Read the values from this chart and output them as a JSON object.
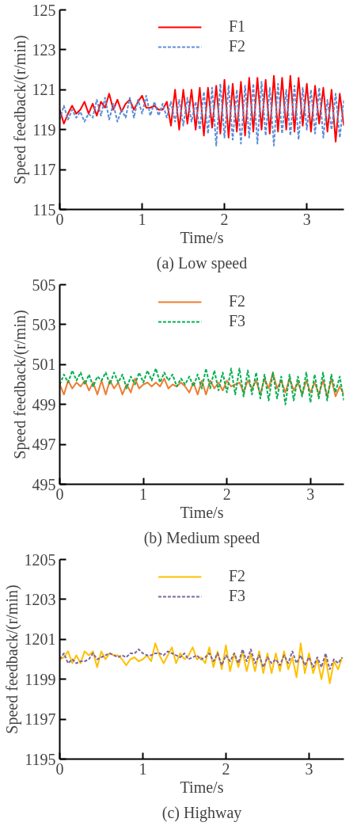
{
  "chart_data": [
    {
      "type": "line",
      "title": "(a) Low speed",
      "xlabel": "Time/s",
      "ylabel": "Speed feedback/(r/min)",
      "xlim": [
        0,
        3.45
      ],
      "ylim": [
        115,
        125
      ],
      "xticks": [
        0,
        1,
        2,
        3
      ],
      "yticks": [
        115,
        117,
        119,
        121,
        123,
        125
      ],
      "grid": false,
      "legend": "top",
      "marker": "none",
      "x": [
        0,
        0.05,
        0.1,
        0.15,
        0.2,
        0.25,
        0.3,
        0.35,
        0.4,
        0.45,
        0.5,
        0.55,
        0.6,
        0.65,
        0.7,
        0.75,
        0.8,
        0.85,
        0.9,
        0.95,
        1,
        1.05,
        1.1,
        1.15,
        1.2,
        1.25,
        1.3,
        1.35,
        1.4,
        1.45,
        1.5,
        1.55,
        1.6,
        1.65,
        1.7,
        1.75,
        1.8,
        1.85,
        1.9,
        1.95,
        2,
        2.05,
        2.1,
        2.15,
        2.2,
        2.25,
        2.3,
        2.35,
        2.4,
        2.45,
        2.5,
        2.55,
        2.6,
        2.65,
        2.7,
        2.75,
        2.8,
        2.85,
        2.9,
        2.95,
        3,
        3.05,
        3.1,
        3.15,
        3.2,
        3.25,
        3.3,
        3.35,
        3.4,
        3.45
      ],
      "series": [
        {
          "name": "F1",
          "color": "#ff0000",
          "line_style": "solid",
          "values": [
            120.0,
            119.3,
            119.8,
            120.2,
            119.8,
            120.0,
            120.4,
            119.8,
            120.3,
            119.7,
            120.4,
            120.1,
            120.8,
            120.0,
            120.5,
            119.9,
            120.3,
            120.5,
            120.0,
            120.4,
            120.7,
            120.1,
            120.1,
            120.2,
            120.0,
            120.0,
            120.4,
            119.2,
            121.0,
            119.0,
            121.0,
            119.3,
            121.0,
            119.0,
            121.1,
            118.7,
            121.1,
            119.1,
            121.2,
            118.8,
            121.5,
            118.6,
            121.3,
            118.9,
            121.4,
            118.7,
            121.6,
            118.9,
            121.6,
            119.0,
            121.5,
            118.8,
            121.7,
            118.9,
            121.6,
            119.0,
            121.7,
            118.9,
            121.6,
            119.2,
            121.3,
            118.9,
            121.2,
            119.3,
            121.1,
            118.9,
            121.0,
            118.4,
            120.8,
            119.2
          ]
        },
        {
          "name": "F2",
          "color": "#5b8ed8",
          "line_style": "dashed",
          "values": [
            119.5,
            120.2,
            119.5,
            120.0,
            119.6,
            119.9,
            119.4,
            119.8,
            119.6,
            120.5,
            119.7,
            120.6,
            119.5,
            120.3,
            119.4,
            120.0,
            119.6,
            120.6,
            119.6,
            120.5,
            119.8,
            120.7,
            119.7,
            120.4,
            119.7,
            120.3,
            119.6,
            120.4,
            119.4,
            120.5,
            119.2,
            120.6,
            119.4,
            120.4,
            119.0,
            120.9,
            118.8,
            121.1,
            118.2,
            121.3,
            118.6,
            121.2,
            118.5,
            121.0,
            118.3,
            121.2,
            118.6,
            121.3,
            118.3,
            121.4,
            118.7,
            121.1,
            118.2,
            121.3,
            118.8,
            121.0,
            118.7,
            121.2,
            118.5,
            121.1,
            119.0,
            121.0,
            118.8,
            121.1,
            118.6,
            120.5,
            119.0,
            120.8,
            118.6,
            120.5
          ]
        }
      ]
    },
    {
      "type": "line",
      "title": "(b) Medium speed",
      "xlabel": "Time/s",
      "ylabel": "Speed feedback/(r/min)",
      "xlim": [
        0,
        3.4
      ],
      "ylim": [
        495,
        505
      ],
      "xticks": [
        0,
        1,
        2,
        3
      ],
      "yticks": [
        495,
        497,
        499,
        501,
        503,
        505
      ],
      "grid": false,
      "legend": "top",
      "marker": "none",
      "x": [
        0,
        0.05,
        0.1,
        0.15,
        0.2,
        0.25,
        0.3,
        0.35,
        0.4,
        0.45,
        0.5,
        0.55,
        0.6,
        0.65,
        0.7,
        0.75,
        0.8,
        0.85,
        0.9,
        0.95,
        1,
        1.05,
        1.1,
        1.15,
        1.2,
        1.25,
        1.3,
        1.35,
        1.4,
        1.45,
        1.5,
        1.55,
        1.6,
        1.65,
        1.7,
        1.75,
        1.8,
        1.85,
        1.9,
        1.95,
        2,
        2.05,
        2.1,
        2.15,
        2.2,
        2.25,
        2.3,
        2.35,
        2.4,
        2.45,
        2.5,
        2.55,
        2.6,
        2.65,
        2.7,
        2.75,
        2.8,
        2.85,
        2.9,
        2.95,
        3,
        3.05,
        3.1,
        3.15,
        3.2,
        3.25,
        3.3,
        3.35,
        3.4
      ],
      "series": [
        {
          "name": "F2",
          "color": "#ed7d31",
          "line_style": "solid",
          "values": [
            500.0,
            499.5,
            500.2,
            499.8,
            500.1,
            499.9,
            500.2,
            499.7,
            500.1,
            499.5,
            500.2,
            499.5,
            500.2,
            499.8,
            500.1,
            499.5,
            500.0,
            499.6,
            500.3,
            499.8,
            500.0,
            500.1,
            499.9,
            500.1,
            499.9,
            500.3,
            499.8,
            500.0,
            499.9,
            500.1,
            499.9,
            499.6,
            500.1,
            499.5,
            500.2,
            499.5,
            500.2,
            499.8,
            500.1,
            499.7,
            500.2,
            499.9,
            500.0,
            500.1,
            499.6,
            500.2,
            499.8,
            500.2,
            499.5,
            500.3,
            499.8,
            500.6,
            499.8,
            500.2,
            499.6,
            500.3,
            499.7,
            500.1,
            499.5,
            500.2,
            499.6,
            500.1,
            499.5,
            500.2,
            499.4,
            500.3,
            499.4,
            499.9,
            499.5
          ]
        },
        {
          "name": "F3",
          "color": "#00b050",
          "line_style": "dashed",
          "values": [
            500.0,
            500.5,
            500.1,
            500.7,
            500.2,
            500.6,
            500.0,
            500.5,
            499.9,
            500.4,
            500.2,
            500.6,
            500.0,
            500.6,
            500.1,
            500.5,
            499.8,
            500.4,
            500.0,
            500.6,
            500.1,
            500.7,
            500.2,
            500.8,
            500.1,
            500.6,
            500.2,
            500.5,
            499.9,
            500.3,
            500.0,
            500.4,
            499.9,
            500.5,
            499.8,
            500.8,
            499.8,
            500.7,
            499.7,
            500.6,
            499.6,
            500.8,
            499.5,
            500.8,
            499.4,
            500.7,
            499.5,
            500.6,
            499.3,
            500.5,
            499.2,
            500.6,
            499.3,
            500.4,
            499.0,
            500.5,
            499.2,
            500.4,
            499.4,
            500.6,
            499.1,
            500.5,
            499.3,
            500.6,
            499.2,
            500.5,
            499.6,
            500.4,
            499.2
          ]
        }
      ]
    },
    {
      "type": "line",
      "title": "(c) Highway",
      "xlabel": "Time/s",
      "ylabel": "Speed feedback/(r/min)",
      "xlim": [
        0,
        3.42
      ],
      "ylim": [
        1195,
        1205
      ],
      "xticks": [
        0,
        1,
        2,
        3
      ],
      "yticks": [
        1195,
        1197,
        1199,
        1201,
        1203,
        1205
      ],
      "grid": false,
      "legend": "top",
      "marker": "none",
      "x": [
        0,
        0.05,
        0.1,
        0.15,
        0.2,
        0.25,
        0.3,
        0.35,
        0.4,
        0.45,
        0.5,
        0.55,
        0.6,
        0.65,
        0.7,
        0.75,
        0.8,
        0.85,
        0.9,
        0.95,
        1,
        1.05,
        1.1,
        1.15,
        1.2,
        1.25,
        1.3,
        1.35,
        1.4,
        1.45,
        1.5,
        1.55,
        1.6,
        1.65,
        1.7,
        1.75,
        1.8,
        1.85,
        1.9,
        1.95,
        2,
        2.05,
        2.1,
        2.15,
        2.2,
        2.25,
        2.3,
        2.35,
        2.4,
        2.45,
        2.5,
        2.55,
        2.6,
        2.65,
        2.7,
        2.75,
        2.8,
        2.85,
        2.9,
        2.95,
        3,
        3.05,
        3.1,
        3.15,
        3.2,
        3.25,
        3.3,
        3.35,
        3.4
      ],
      "series": [
        {
          "name": "F2",
          "color": "#ffc000",
          "line_style": "solid",
          "values": [
            1200.0,
            1200.1,
            1200.4,
            1199.8,
            1200.2,
            1199.8,
            1200.4,
            1200.2,
            1200.4,
            1199.6,
            1200.4,
            1200.0,
            1200.3,
            1200.2,
            1200.2,
            1200.0,
            1199.7,
            1200.0,
            1200.1,
            1199.9,
            1200.0,
            1200.2,
            1199.9,
            1200.8,
            1200.2,
            1199.8,
            1200.2,
            1200.6,
            1199.8,
            1200.3,
            1200.0,
            1200.2,
            1200.6,
            1200.0,
            1200.1,
            1199.8,
            1200.6,
            1199.6,
            1200.4,
            1199.5,
            1200.7,
            1199.4,
            1200.3,
            1199.6,
            1200.4,
            1199.4,
            1200.3,
            1199.4,
            1200.4,
            1199.3,
            1200.3,
            1199.3,
            1200.3,
            1199.4,
            1200.4,
            1199.5,
            1200.1,
            1199.1,
            1200.8,
            1199.3,
            1200.3,
            1199.3,
            1200.0,
            1199.0,
            1200.1,
            1198.8,
            1199.9,
            1199.5,
            1200.1
          ]
        },
        {
          "name": "F3",
          "color": "#8064a2",
          "line_style": "dashed",
          "values": [
            1200.0,
            1200.3,
            1199.8,
            1200.0,
            1199.8,
            1199.9,
            1199.9,
            1200.0,
            1200.3,
            1200.0,
            1200.1,
            1200.2,
            1200.3,
            1200.2,
            1200.1,
            1200.2,
            1200.1,
            1200.3,
            1200.3,
            1200.5,
            1200.3,
            1200.2,
            1200.2,
            1200.3,
            1200.3,
            1200.2,
            1200.4,
            1200.3,
            1200.2,
            1200.1,
            1200.3,
            1200.0,
            1200.1,
            1200.2,
            1200.0,
            1200.1,
            1200.3,
            1199.9,
            1200.3,
            1199.7,
            1200.2,
            1199.9,
            1200.3,
            1199.8,
            1200.5,
            1199.9,
            1200.5,
            1199.8,
            1200.2,
            1199.6,
            1200.1,
            1199.8,
            1200.0,
            1199.7,
            1200.2,
            1199.8,
            1200.4,
            1199.8,
            1200.2,
            1199.7,
            1200.1,
            1199.6,
            1200.1,
            1199.6,
            1200.3,
            1199.5,
            1200.0,
            1199.8,
            1200.1
          ]
        }
      ]
    }
  ]
}
